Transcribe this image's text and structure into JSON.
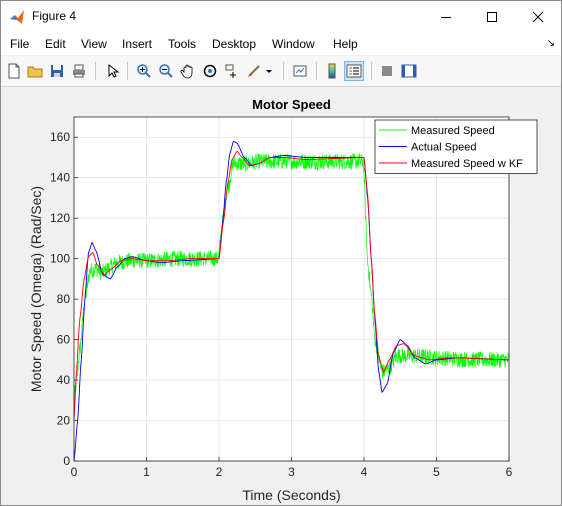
{
  "window": {
    "title": "Figure 4",
    "icon": "matlab-icon",
    "controls": [
      "minimize-icon",
      "maximize-icon",
      "close-icon"
    ]
  },
  "menu": {
    "items": [
      "File",
      "Edit",
      "View",
      "Insert",
      "Tools",
      "Desktop",
      "Window",
      "Help"
    ],
    "dock_glyph": "↘"
  },
  "toolbar": {
    "buttons": [
      "new-figure-icon",
      "open-file-icon",
      "save-icon",
      "print-icon",
      "edit-plot-arrow-icon",
      "zoom-in-icon",
      "zoom-out-icon",
      "pan-hand-icon",
      "rotate-3d-icon",
      "data-cursor-icon",
      "brush-icon",
      "link-plot-icon",
      "colorbar-icon",
      "legend-icon",
      "hide-plot-tools-icon",
      "show-plot-tools-icon"
    ]
  },
  "chart_data": {
    "type": "line",
    "title": "Motor Speed",
    "xlabel": "Time (Seconds)",
    "ylabel": "Motor Speed (Omega) (Rad/Sec)",
    "xlim": [
      0,
      6
    ],
    "ylim": [
      0,
      170
    ],
    "xticks": [
      0,
      1,
      2,
      3,
      4,
      5,
      6
    ],
    "yticks": [
      0,
      20,
      40,
      60,
      80,
      100,
      120,
      140,
      160
    ],
    "grid": true,
    "legend_position": "top-right",
    "series": [
      {
        "name": "Measured Speed",
        "color": "#00ff00",
        "noise": 4,
        "x": [
          0,
          0.03,
          0.08,
          0.15,
          0.22,
          0.3,
          0.4,
          0.5,
          0.6,
          0.8,
          1.0,
          1.5,
          1.99,
          2.05,
          2.12,
          2.2,
          2.3,
          2.4,
          2.55,
          2.7,
          3.0,
          3.5,
          3.99,
          4.05,
          4.1,
          4.15,
          4.25,
          4.35,
          4.45,
          4.55,
          4.7,
          5.0,
          5.5,
          6.0
        ],
        "y": [
          30,
          38,
          55,
          80,
          94,
          95,
          93,
          96,
          98,
          99,
          99,
          100,
          100,
          118,
          135,
          147,
          147,
          147,
          148,
          148,
          148,
          148,
          148,
          98,
          82,
          60,
          44,
          46,
          52,
          52,
          52,
          51,
          50,
          50
        ]
      },
      {
        "name": "Actual Speed",
        "color": "#0000ff",
        "noise": 0,
        "x": [
          0,
          0.05,
          0.1,
          0.15,
          0.2,
          0.25,
          0.3,
          0.4,
          0.5,
          0.6,
          0.7,
          0.8,
          1.0,
          1.2,
          1.5,
          2.0,
          2.05,
          2.1,
          2.15,
          2.2,
          2.25,
          2.35,
          2.45,
          2.55,
          2.7,
          2.9,
          3.2,
          4.0,
          4.05,
          4.1,
          4.15,
          4.2,
          4.25,
          4.32,
          4.4,
          4.5,
          4.6,
          4.7,
          4.85,
          5.0,
          5.3,
          6.0
        ],
        "y": [
          0,
          20,
          50,
          80,
          103,
          108,
          104,
          92,
          90,
          96,
          100,
          101,
          99,
          98,
          99,
          100,
          118,
          138,
          152,
          158,
          157,
          150,
          146,
          147,
          150,
          151,
          150,
          150,
          130,
          100,
          70,
          45,
          34,
          38,
          53,
          60,
          57,
          51,
          48,
          50,
          51,
          50
        ]
      },
      {
        "name": "Measured Speed w KF",
        "color": "#ff0000",
        "noise": 0,
        "x": [
          0,
          0.03,
          0.08,
          0.14,
          0.2,
          0.26,
          0.32,
          0.42,
          0.52,
          0.65,
          0.8,
          1.0,
          1.3,
          1.6,
          2.0,
          2.06,
          2.12,
          2.18,
          2.25,
          2.32,
          2.42,
          2.55,
          2.7,
          2.9,
          3.2,
          4.0,
          4.05,
          4.1,
          4.15,
          4.2,
          4.27,
          4.35,
          4.45,
          4.55,
          4.7,
          4.9,
          5.2,
          6.0
        ],
        "y": [
          20,
          42,
          70,
          90,
          101,
          103,
          97,
          92,
          95,
          99,
          100,
          99,
          99,
          100,
          100,
          118,
          137,
          149,
          153,
          150,
          146,
          147,
          150,
          150,
          149,
          150,
          132,
          100,
          72,
          52,
          44,
          50,
          57,
          58,
          52,
          50,
          51,
          50
        ]
      }
    ]
  }
}
